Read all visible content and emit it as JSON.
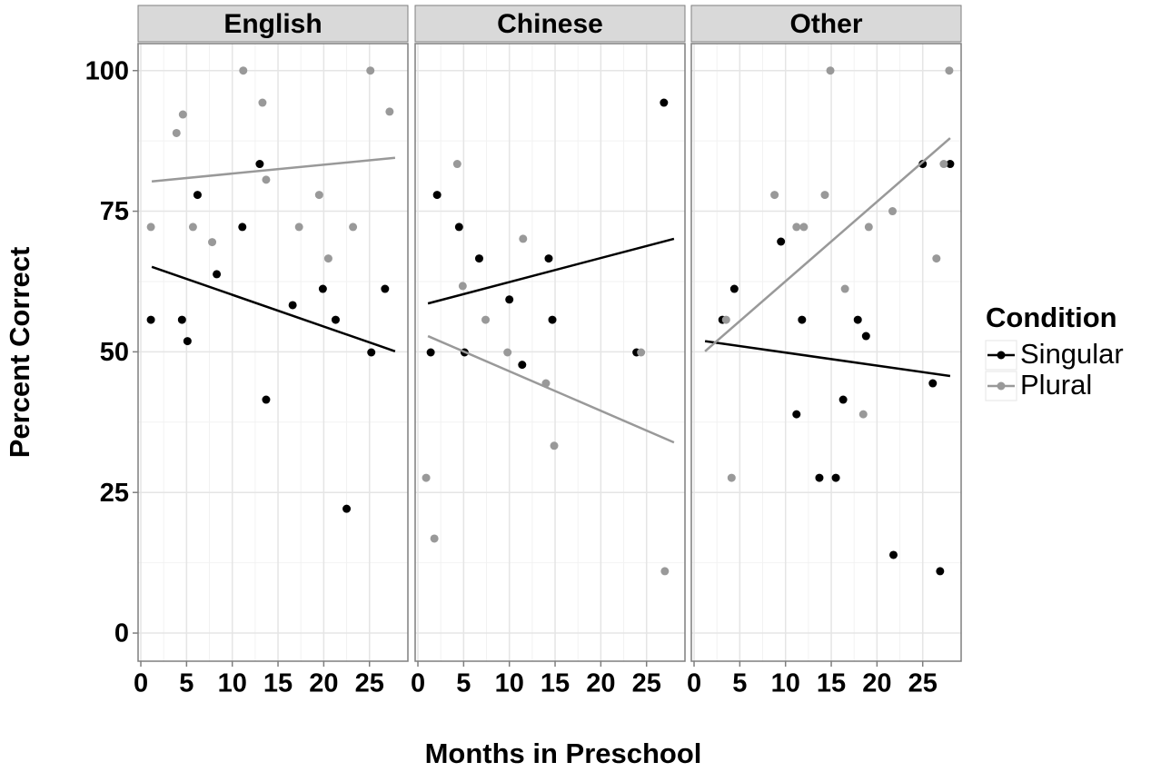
{
  "y_label": "Percent Correct",
  "x_label": "Months in Preschool",
  "legend": {
    "title": "Condition",
    "series": [
      {
        "name": "Singular",
        "color": "#000000"
      },
      {
        "name": "Plural",
        "color": "#999999"
      }
    ]
  },
  "chart_data": [
    {
      "type": "scatter",
      "title": "English",
      "xlim": [
        -0.3,
        29.2
      ],
      "ylim": [
        -5,
        104.8
      ],
      "xticks": [
        0,
        5,
        10,
        15,
        20,
        25
      ],
      "yticks": [
        0,
        25,
        50,
        75,
        100
      ],
      "grid": true,
      "series": [
        {
          "x": [
            1.1,
            4.5,
            5.1,
            6.2,
            8.3,
            11.1,
            13.0,
            13.7,
            16.6,
            19.9,
            21.3,
            22.5,
            25.2,
            26.7
          ],
          "values": [
            55.7,
            55.7,
            51.9,
            77.9,
            63.8,
            72.2,
            83.4,
            41.5,
            58.3,
            61.2,
            55.7,
            22.1,
            49.9,
            61.2
          ],
          "fit": {
            "x": [
              1.2,
              27.8
            ],
            "values": [
              65.1,
              50.1
            ]
          }
        },
        {
          "x": [
            1.1,
            3.9,
            4.6,
            5.7,
            7.8,
            11.2,
            13.3,
            13.7,
            17.3,
            19.5,
            20.5,
            23.2,
            25.1,
            27.2
          ],
          "values": [
            72.2,
            88.9,
            92.2,
            72.2,
            69.5,
            100,
            94.3,
            80.6,
            72.2,
            77.9,
            66.6,
            72.2,
            100,
            92.7
          ],
          "fit": {
            "x": [
              1.2,
              27.8
            ],
            "values": [
              80.3,
              84.5
            ]
          }
        }
      ]
    },
    {
      "type": "scatter",
      "title": "Chinese",
      "xlim": [
        -0.3,
        29.2
      ],
      "ylim": [
        -5,
        104.8
      ],
      "xticks": [
        0,
        5,
        10,
        15,
        20,
        25
      ],
      "yticks": [
        0,
        25,
        50,
        75,
        100
      ],
      "grid": true,
      "series": [
        {
          "x": [
            1.4,
            2.1,
            4.5,
            5.1,
            6.7,
            10.0,
            11.4,
            14.3,
            14.7,
            23.9,
            26.9
          ],
          "values": [
            49.9,
            77.9,
            72.2,
            49.9,
            66.6,
            59.3,
            47.7,
            66.6,
            55.7,
            49.9,
            94.3
          ],
          "fit": {
            "x": [
              1.1,
              28.0
            ],
            "values": [
              58.6,
              70.1
            ]
          }
        },
        {
          "x": [
            0.9,
            1.8,
            4.3,
            4.9,
            7.4,
            9.8,
            11.5,
            14.0,
            14.9,
            24.4,
            27.0
          ],
          "values": [
            27.6,
            16.8,
            83.4,
            61.7,
            55.7,
            49.9,
            70.1,
            44.4,
            33.3,
            49.9,
            11.0
          ],
          "fit": {
            "x": [
              1.1,
              28.0
            ],
            "values": [
              52.8,
              33.9
            ]
          }
        }
      ]
    },
    {
      "type": "scatter",
      "title": "Other",
      "xlim": [
        -0.3,
        29.2
      ],
      "ylim": [
        -5,
        104.8
      ],
      "xticks": [
        0,
        5,
        10,
        15,
        20,
        25
      ],
      "yticks": [
        0,
        25,
        50,
        75,
        100
      ],
      "grid": true,
      "series": [
        {
          "x": [
            3.1,
            4.4,
            9.5,
            11.2,
            11.8,
            13.7,
            15.5,
            16.3,
            17.9,
            18.8,
            21.8,
            25.0,
            26.1,
            26.9,
            28.0
          ],
          "values": [
            55.7,
            61.2,
            69.6,
            38.9,
            55.7,
            27.6,
            27.6,
            41.5,
            55.7,
            52.8,
            13.9,
            83.4,
            44.4,
            11.0,
            83.4
          ],
          "fit": {
            "x": [
              1.2,
              28.0
            ],
            "values": [
              51.9,
              45.7
            ]
          }
        },
        {
          "x": [
            3.5,
            4.1,
            8.8,
            11.2,
            12.0,
            14.3,
            14.9,
            16.5,
            18.5,
            19.1,
            21.7,
            26.5,
            27.3,
            27.9
          ],
          "values": [
            55.7,
            27.6,
            77.9,
            72.2,
            72.2,
            77.9,
            100,
            61.2,
            38.9,
            72.2,
            75.0,
            66.6,
            83.4,
            100
          ],
          "fit": {
            "x": [
              1.2,
              28.0
            ],
            "values": [
              50.1,
              88.0
            ]
          }
        }
      ]
    }
  ]
}
